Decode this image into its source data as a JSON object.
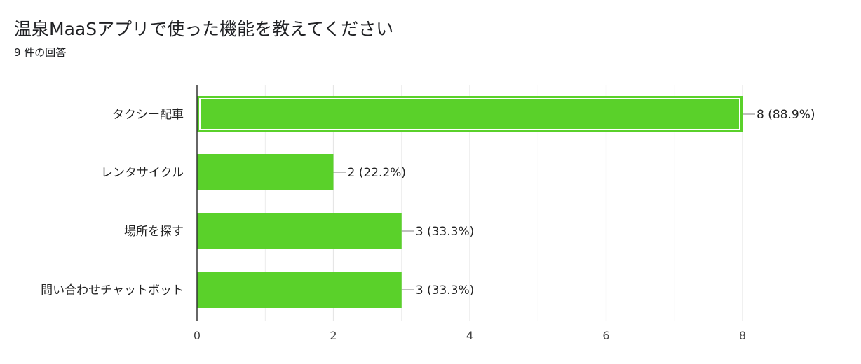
{
  "header": {
    "title": "温泉MaaSアプリで使った機能を教えてください",
    "response_count": "9 件の回答"
  },
  "colors": {
    "bar": "#5ad12a",
    "highlight_outline": "#ffffff",
    "gridline": "#e6e6e6",
    "axis": "#333333",
    "leader": "#999999"
  },
  "chart_data": {
    "type": "bar",
    "orientation": "horizontal",
    "title": "温泉MaaSアプリで使った機能を教えてください",
    "xlabel": "",
    "ylabel": "",
    "categories": [
      "タクシー配車",
      "レンタサイクル",
      "場所を探す",
      "問い合わせチャットボット"
    ],
    "values": [
      8,
      2,
      3,
      3
    ],
    "data_labels": [
      "8 (88.9%)",
      "2 (22.2%)",
      "3 (33.3%)",
      "3 (33.3%)"
    ],
    "xlim": [
      0,
      8
    ],
    "xticks": [
      0,
      2,
      4,
      6,
      8
    ],
    "highlighted_index": 0,
    "grid": true
  }
}
